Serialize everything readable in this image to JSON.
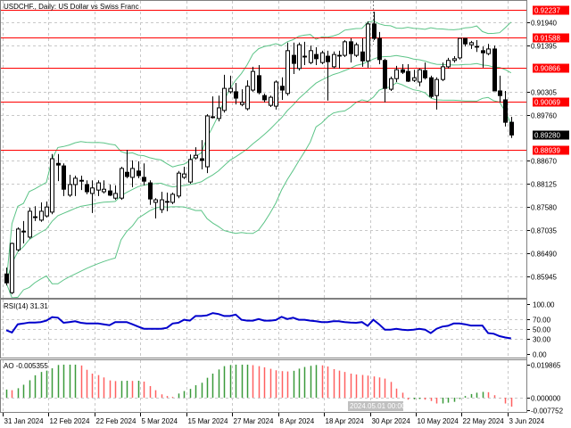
{
  "chart_data": {
    "type": "candlestick",
    "title": "USDCHF., Daily:  US Dollar vs Swiss Franc",
    "ylim": [
      0.8552,
      0.9246
    ],
    "grid": true,
    "time_labels": [
      "31 Jan 2024",
      "12 Feb 2024",
      "22 Feb 2024",
      "5 Mar 2024",
      "15 Mar 2024",
      "27 Mar 2024",
      "8 Apr 2024",
      "18 Apr 2024",
      "30 Apr 2024",
      "10 May 2024",
      "22 May 2024",
      "3 Jun 2024"
    ],
    "time_label_bar_index": [
      0,
      8,
      16,
      24,
      32,
      40,
      48,
      56,
      64,
      72,
      80,
      88
    ],
    "crosshair_time_label": "2024.05.01 00:00",
    "price_ticks": [
      "0.91940",
      "0.91395",
      "0.90305",
      "0.89760",
      "0.88670",
      "0.88125",
      "0.87580",
      "0.87035",
      "0.86490",
      "0.85945"
    ],
    "price_tick_values": [
      0.9194,
      0.91395,
      0.90305,
      0.8976,
      0.8867,
      0.88125,
      0.8758,
      0.87035,
      0.8649,
      0.85945
    ],
    "current_price": {
      "label": "0.89280",
      "value": 0.8928,
      "color": "#000000"
    },
    "levels": [
      {
        "label": "0.92237",
        "value": 0.92237
      },
      {
        "label": "0.91588",
        "value": 0.91588
      },
      {
        "label": "0.90866",
        "value": 0.90866
      },
      {
        "label": "0.90069",
        "value": 0.90069
      },
      {
        "label": "0.88939",
        "value": 0.88939
      }
    ],
    "level_color": "#ff0000",
    "bands": {
      "type": "Bollinger",
      "period": 20,
      "deviation": 2,
      "color": "#5cc487"
    },
    "ohlc": [
      [
        0.86,
        0.8615,
        0.8573,
        0.8579
      ],
      [
        0.8556,
        0.8674,
        0.8552,
        0.8672
      ],
      [
        0.8657,
        0.871,
        0.8653,
        0.8706
      ],
      [
        0.8699,
        0.8725,
        0.8672,
        0.8701
      ],
      [
        0.8687,
        0.8756,
        0.8683,
        0.8748
      ],
      [
        0.8733,
        0.876,
        0.8725,
        0.8735
      ],
      [
        0.8727,
        0.8769,
        0.8723,
        0.8748
      ],
      [
        0.8737,
        0.8771,
        0.8733,
        0.8758
      ],
      [
        0.8746,
        0.8883,
        0.8741,
        0.8872
      ],
      [
        0.8861,
        0.8883,
        0.8819,
        0.8857
      ],
      [
        0.8855,
        0.8861,
        0.8784,
        0.88
      ],
      [
        0.8786,
        0.8834,
        0.8782,
        0.8811
      ],
      [
        0.8811,
        0.8832,
        0.8784,
        0.8826
      ],
      [
        0.8819,
        0.8832,
        0.8798,
        0.8821
      ],
      [
        0.8811,
        0.8821,
        0.8788,
        0.8794
      ],
      [
        0.879,
        0.8821,
        0.8744,
        0.8803
      ],
      [
        0.8798,
        0.8821,
        0.8784,
        0.8815
      ],
      [
        0.8794,
        0.8821,
        0.879,
        0.88
      ],
      [
        0.8796,
        0.8811,
        0.8784,
        0.8786
      ],
      [
        0.8779,
        0.8809,
        0.8775,
        0.879
      ],
      [
        0.8779,
        0.8853,
        0.8775,
        0.8849
      ],
      [
        0.884,
        0.8893,
        0.8826,
        0.883
      ],
      [
        0.8828,
        0.8868,
        0.8805,
        0.8849
      ],
      [
        0.8843,
        0.8866,
        0.8826,
        0.8832
      ],
      [
        0.8828,
        0.8861,
        0.8809,
        0.8819
      ],
      [
        0.8815,
        0.8821,
        0.8763,
        0.8777
      ],
      [
        0.8769,
        0.8779,
        0.8731,
        0.8775
      ],
      [
        0.8752,
        0.8794,
        0.8744,
        0.8775
      ],
      [
        0.8771,
        0.8792,
        0.8748,
        0.8771
      ],
      [
        0.8769,
        0.8792,
        0.8765,
        0.8788
      ],
      [
        0.8784,
        0.8843,
        0.8779,
        0.8838
      ],
      [
        0.8828,
        0.8853,
        0.8824,
        0.8836
      ],
      [
        0.8817,
        0.8882,
        0.8813,
        0.887
      ],
      [
        0.8874,
        0.8899,
        0.887,
        0.888
      ],
      [
        0.8872,
        0.8916,
        0.8847,
        0.8868
      ],
      [
        0.8853,
        0.8977,
        0.8838,
        0.8973
      ],
      [
        0.8971,
        0.9019,
        0.8967,
        0.8969
      ],
      [
        0.8967,
        0.9021,
        0.896,
        0.8992
      ],
      [
        0.8986,
        0.907,
        0.8981,
        0.9038
      ],
      [
        0.903,
        0.9068,
        0.9026,
        0.9038
      ],
      [
        0.903,
        0.9051,
        0.9,
        0.9015
      ],
      [
        0.9,
        0.9036,
        0.8996,
        0.9005
      ],
      [
        0.899,
        0.9057,
        0.8986,
        0.9043
      ],
      [
        0.9034,
        0.9089,
        0.903,
        0.9078
      ],
      [
        0.9068,
        0.9093,
        0.9024,
        0.9028
      ],
      [
        0.9021,
        0.9026,
        0.9005,
        0.9011
      ],
      [
        0.8998,
        0.9021,
        0.8994,
        0.9017
      ],
      [
        0.8996,
        0.9057,
        0.8988,
        0.9053
      ],
      [
        0.9043,
        0.9064,
        0.9011,
        0.9034
      ],
      [
        0.9026,
        0.9146,
        0.9021,
        0.9127
      ],
      [
        0.9116,
        0.9146,
        0.9072,
        0.9097
      ],
      [
        0.9085,
        0.9146,
        0.908,
        0.9141
      ],
      [
        0.9112,
        0.9148,
        0.9093,
        0.9114
      ],
      [
        0.9099,
        0.9139,
        0.9095,
        0.9127
      ],
      [
        0.9118,
        0.9135,
        0.9093,
        0.9108
      ],
      [
        0.9099,
        0.9127,
        0.9095,
        0.9122
      ],
      [
        0.9114,
        0.9127,
        0.9009,
        0.9101
      ],
      [
        0.9089,
        0.9125,
        0.9085,
        0.9118
      ],
      [
        0.9116,
        0.9127,
        0.9085,
        0.9116
      ],
      [
        0.9116,
        0.9152,
        0.9112,
        0.9148
      ],
      [
        0.9148,
        0.9156,
        0.9099,
        0.912
      ],
      [
        0.9116,
        0.9146,
        0.9112,
        0.9141
      ],
      [
        0.9124,
        0.9156,
        0.9089,
        0.9103
      ],
      [
        0.9103,
        0.9196,
        0.9087,
        0.919
      ],
      [
        0.919,
        0.9219,
        0.9152,
        0.9156
      ],
      [
        0.9156,
        0.9171,
        0.9095,
        0.9106
      ],
      [
        0.9104,
        0.9108,
        0.9005,
        0.9038
      ],
      [
        0.9036,
        0.9066,
        0.9032,
        0.9061
      ],
      [
        0.9061,
        0.9091,
        0.9053,
        0.9082
      ],
      [
        0.9082,
        0.9095,
        0.9072,
        0.9076
      ],
      [
        0.9078,
        0.9095,
        0.9053,
        0.9055
      ],
      [
        0.9057,
        0.9082,
        0.9053,
        0.9063
      ],
      [
        0.9053,
        0.9085,
        0.9043,
        0.9082
      ],
      [
        0.908,
        0.9099,
        0.9059,
        0.9063
      ],
      [
        0.9063,
        0.9068,
        0.9015,
        0.9019
      ],
      [
        0.9021,
        0.9064,
        0.8988,
        0.9059
      ],
      [
        0.9059,
        0.9099,
        0.9055,
        0.9089
      ],
      [
        0.9089,
        0.911,
        0.9085,
        0.9104
      ],
      [
        0.9104,
        0.9114,
        0.9099,
        0.9108
      ],
      [
        0.911,
        0.9156,
        0.9106,
        0.9156
      ],
      [
        0.9156,
        0.9156,
        0.9137,
        0.9143
      ],
      [
        0.9141,
        0.915,
        0.9131,
        0.9146
      ],
      [
        0.9137,
        0.9152,
        0.9124,
        0.9137
      ],
      [
        0.9127,
        0.9137,
        0.9087,
        0.9122
      ],
      [
        0.912,
        0.9143,
        0.9116,
        0.9131
      ],
      [
        0.9131,
        0.9139,
        0.9032,
        0.9032
      ],
      [
        0.9032,
        0.9068,
        0.9005,
        0.9021
      ],
      [
        0.9011,
        0.9032,
        0.8948,
        0.8958
      ],
      [
        0.8958,
        0.8971,
        0.8921,
        0.8928
      ]
    ],
    "rsi": {
      "label": "RSI(14) 31.31",
      "color": "#0000cc",
      "ylim": [
        0,
        100
      ],
      "ticks": [
        "100.00",
        "70.00",
        "50.00",
        "30.00",
        "0.00"
      ],
      "tick_values": [
        100,
        70,
        50,
        30,
        0
      ],
      "values": [
        47.6,
        43,
        59.5,
        61,
        63,
        63,
        64,
        66.7,
        74,
        72.6,
        62.5,
        64,
        65.5,
        62.5,
        61,
        61,
        61,
        59.5,
        57.7,
        64,
        63.7,
        64,
        59.5,
        54.8,
        50.6,
        50.6,
        50.6,
        50.6,
        52.4,
        61,
        62.5,
        68.5,
        66.7,
        76,
        76,
        77.4,
        82,
        80,
        76,
        76,
        79,
        68.5,
        66.7,
        66.7,
        70,
        66.7,
        66.7,
        68,
        74.4,
        70,
        72.6,
        68.5,
        68.5,
        66.7,
        65.5,
        64,
        64,
        65.5,
        65.5,
        64,
        63,
        62.5,
        64,
        56.5,
        68.5,
        59.5,
        48.8,
        48.8,
        50.6,
        48.8,
        47.6,
        48.8,
        50.6,
        48.8,
        41.7,
        50.6,
        54.8,
        56.5,
        61,
        61,
        59.5,
        57,
        57,
        57,
        41.7,
        40.5,
        35.7,
        33,
        31.31
      ]
    },
    "ao": {
      "label": "AO -0.005355",
      "up_color": "#3a9a3a",
      "down_color": "#ff6060",
      "ticks": [
        "0.019865",
        "0.000000",
        "-0.007752"
      ],
      "tick_values": [
        0.019865,
        0,
        -0.007752
      ],
      "values": [
        0.0049,
        0.0045,
        0.0057,
        0.0078,
        0.0105,
        0.0135,
        0.0155,
        0.0163,
        0.0177,
        0.0197,
        0.0199,
        0.0199,
        0.0199,
        0.0194,
        0.0168,
        0.0145,
        0.0136,
        0.0122,
        0.0104,
        0.01,
        0.0101,
        0.0102,
        0.0101,
        0.0102,
        0.0097,
        0.007,
        0.0045,
        0.002,
        0.001,
        0.0005,
        0.0025,
        0.004,
        0.0053,
        0.0075,
        0.009,
        0.012,
        0.0145,
        0.017,
        0.019,
        0.0197,
        0.0199,
        0.0199,
        0.0199,
        0.0196,
        0.019,
        0.0183,
        0.0174,
        0.0165,
        0.016,
        0.0158,
        0.0162,
        0.0175,
        0.0185,
        0.0192,
        0.0197,
        0.0195,
        0.0188,
        0.0172,
        0.0163,
        0.0155,
        0.0145,
        0.014,
        0.0137,
        0.0133,
        0.0128,
        0.0122,
        0.0115,
        0.0095,
        0.0055,
        0.003,
        -0.0012,
        -0.001,
        -0.0008,
        -0.0012,
        -0.002,
        -0.0035,
        -0.0035,
        -0.003,
        -0.0025,
        -0.0008,
        0.001,
        0.0022,
        0.003,
        0.0035,
        0.0033,
        0.0015,
        -0.0002,
        -0.0035,
        -0.0054
      ]
    }
  }
}
